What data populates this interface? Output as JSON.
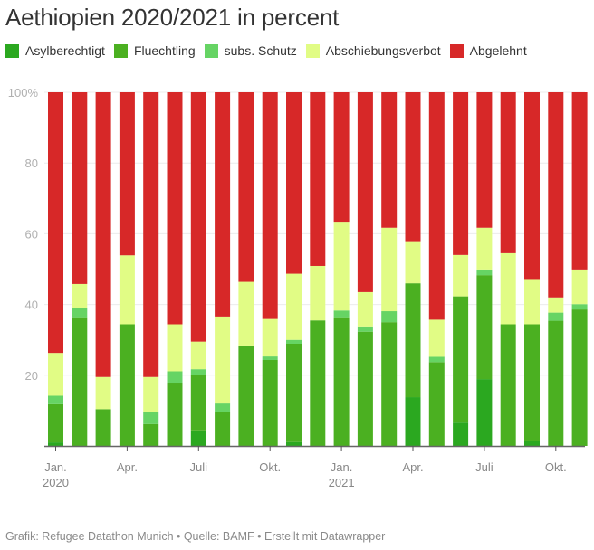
{
  "chart_data": {
    "type": "bar",
    "stacked": true,
    "normalized": true,
    "title": "Aethiopien 2020/2021 in percent",
    "xlabel": "",
    "ylabel": "",
    "ylim": [
      0,
      100
    ],
    "yticks": [
      20,
      40,
      60,
      80,
      100
    ],
    "ytick_labels": [
      "20",
      "40",
      "60",
      "80",
      "100%"
    ],
    "grid": true,
    "legend_position": "top-left",
    "categories": [
      "2020-01",
      "2020-02",
      "2020-03",
      "2020-04",
      "2020-05",
      "2020-06",
      "2020-07",
      "2020-08",
      "2020-09",
      "2020-10",
      "2020-11",
      "2020-12",
      "2021-01",
      "2021-02",
      "2021-03",
      "2021-04",
      "2021-05",
      "2021-06",
      "2021-07",
      "2021-08",
      "2021-09",
      "2021-10",
      "2021-11"
    ],
    "xticks": [
      {
        "index": 0,
        "label": "Jan.",
        "sublabel": "2020"
      },
      {
        "index": 3,
        "label": "Apr.",
        "sublabel": ""
      },
      {
        "index": 6,
        "label": "Juli",
        "sublabel": ""
      },
      {
        "index": 9,
        "label": "Okt.",
        "sublabel": ""
      },
      {
        "index": 12,
        "label": "Jan.",
        "sublabel": "2021"
      },
      {
        "index": 15,
        "label": "Apr.",
        "sublabel": ""
      },
      {
        "index": 18,
        "label": "Juli",
        "sublabel": ""
      },
      {
        "index": 21,
        "label": "Okt.",
        "sublabel": ""
      }
    ],
    "series": [
      {
        "name": "Asylberechtigt",
        "color": "#2ba820",
        "values": [
          1.0,
          0,
          0,
          0,
          0,
          0,
          4.4,
          0,
          0,
          0,
          1.1,
          0,
          0,
          0,
          0,
          13.8,
          0,
          6.6,
          18.9,
          0,
          1.5,
          0,
          0
        ]
      },
      {
        "name": "Fluechtling",
        "color": "#4bb021",
        "values": [
          10.8,
          36.4,
          10.4,
          34.4,
          6.2,
          17.9,
          15.8,
          9.5,
          28.4,
          24.3,
          27.8,
          35.5,
          36.4,
          32.3,
          35.0,
          32.2,
          23.7,
          35.7,
          29.4,
          34.4,
          32.9,
          35.4,
          38.6
        ]
      },
      {
        "name": "subs. Schutz",
        "color": "#66d464",
        "values": [
          2.4,
          2.6,
          0,
          0,
          3.4,
          3.2,
          1.5,
          2.5,
          0,
          1.0,
          1.1,
          0,
          1.9,
          1.5,
          3.1,
          0,
          1.5,
          0,
          1.6,
          0,
          0,
          2.3,
          1.5
        ]
      },
      {
        "name": "Abschiebungsverbot",
        "color": "#e1fc85",
        "values": [
          12.1,
          6.8,
          9.1,
          19.5,
          9.9,
          13.3,
          7.8,
          24.6,
          18.0,
          10.6,
          18.7,
          15.4,
          25.1,
          9.7,
          23.6,
          11.9,
          10.5,
          11.7,
          11.8,
          20.1,
          12.8,
          4.3,
          9.8
        ]
      },
      {
        "name": "Abgelehnt",
        "color": "#d72828",
        "values": [
          73.7,
          54.2,
          80.5,
          46.1,
          80.5,
          65.6,
          70.5,
          63.4,
          53.6,
          64.1,
          51.3,
          49.1,
          36.6,
          56.5,
          38.3,
          42.1,
          64.3,
          46.0,
          38.3,
          45.5,
          52.8,
          58.0,
          50.1
        ]
      }
    ]
  },
  "footer": {
    "text": "Grafik: Refugee Datathon Munich • Quelle: BAMF • Erstellt mit Datawrapper"
  }
}
